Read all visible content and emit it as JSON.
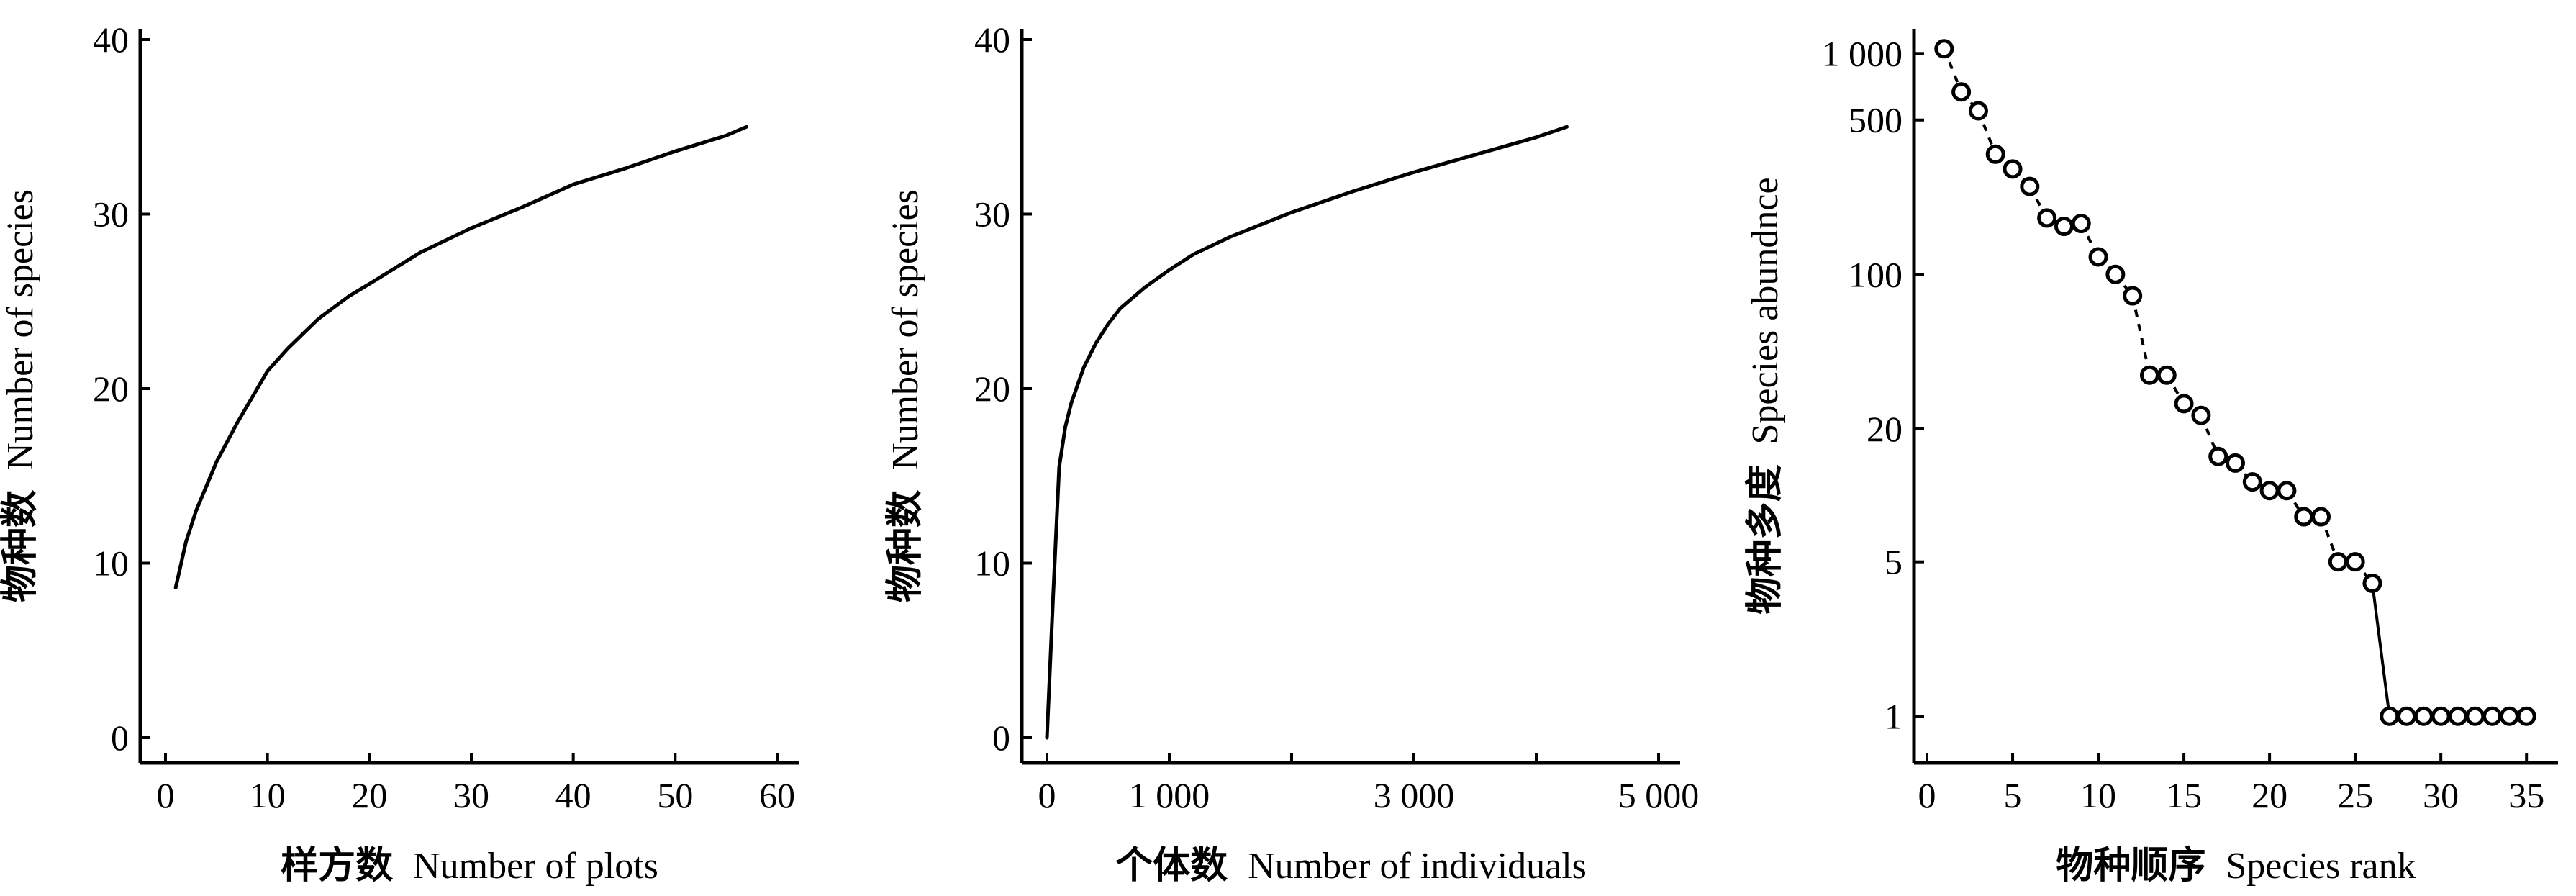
{
  "chart_data": [
    {
      "type": "line",
      "xlabel_cn": "样方数",
      "xlabel_en": "Number of plots",
      "ylabel_cn": "物种数",
      "ylabel_en": "Number of species",
      "xlim": [
        0,
        60
      ],
      "ylim": [
        0,
        40
      ],
      "xticks": [
        0,
        10,
        20,
        30,
        40,
        50,
        60
      ],
      "xtick_labels": [
        "0",
        "10",
        "20",
        "30",
        "40",
        "50",
        "60"
      ],
      "yticks": [
        0,
        10,
        20,
        30,
        40
      ],
      "ytick_labels": [
        "0",
        "10",
        "20",
        "30",
        "40"
      ],
      "x": [
        1,
        2,
        3,
        5,
        7,
        9,
        10,
        12,
        15,
        18,
        20,
        25,
        30,
        35,
        40,
        45,
        50,
        55,
        57
      ],
      "y": [
        8.6,
        11.2,
        13.0,
        15.8,
        18.0,
        20.0,
        21.0,
        22.3,
        24.0,
        25.3,
        26.0,
        27.8,
        29.2,
        30.4,
        31.7,
        32.6,
        33.6,
        34.5,
        35.0
      ]
    },
    {
      "type": "line",
      "xlabel_cn": "个体数",
      "xlabel_en": "Number of individuals",
      "ylabel_cn": "物种数",
      "ylabel_en": "Number of species",
      "xlim": [
        0,
        5000
      ],
      "ylim": [
        0,
        40
      ],
      "xticks": [
        0,
        1000,
        2000,
        3000,
        4000,
        5000
      ],
      "xtick_labels": [
        "0",
        "1 000",
        "",
        "3 000",
        "",
        "5 000"
      ],
      "yticks": [
        0,
        10,
        20,
        30,
        40
      ],
      "ytick_labels": [
        "0",
        "10",
        "20",
        "30",
        "40"
      ],
      "x": [
        0,
        50,
        100,
        150,
        200,
        300,
        400,
        500,
        600,
        800,
        1000,
        1200,
        1500,
        2000,
        2500,
        3000,
        3500,
        4000,
        4250
      ],
      "y": [
        0,
        8.0,
        15.5,
        17.8,
        19.2,
        21.2,
        22.6,
        23.7,
        24.6,
        25.8,
        26.8,
        27.7,
        28.7,
        30.1,
        31.3,
        32.4,
        33.4,
        34.4,
        35.0
      ]
    },
    {
      "type": "scatter",
      "scale_y": "log",
      "xlabel_cn": "物种顺序",
      "xlabel_en": "Species rank",
      "ylabel_cn": "物种多度",
      "ylabel_en": "Species abundnce",
      "xlim": [
        0,
        36
      ],
      "ylim": [
        0.8,
        1200
      ],
      "xticks": [
        0,
        5,
        10,
        15,
        20,
        25,
        30,
        35
      ],
      "xtick_labels": [
        "0",
        "5",
        "10",
        "15",
        "20",
        "25",
        "30",
        "35"
      ],
      "yticks": [
        1,
        5,
        20,
        100,
        500,
        1000
      ],
      "ytick_labels": [
        "1",
        "5",
        "20",
        "100",
        "500",
        "1 000"
      ],
      "x": [
        1,
        2,
        3,
        4,
        5,
        6,
        7,
        8,
        9,
        10,
        11,
        12,
        13,
        14,
        15,
        16,
        17,
        18,
        19,
        20,
        21,
        22,
        23,
        24,
        25,
        26,
        27,
        28,
        29,
        30,
        31,
        32,
        33,
        34,
        35
      ],
      "y": [
        1050,
        670,
        550,
        350,
        300,
        250,
        180,
        165,
        170,
        120,
        100,
        80,
        35,
        35,
        26,
        23,
        15,
        14,
        11.5,
        10.5,
        10.5,
        8,
        8,
        5,
        5,
        4,
        1,
        1,
        1,
        1,
        1,
        1,
        1,
        1,
        1
      ]
    }
  ]
}
